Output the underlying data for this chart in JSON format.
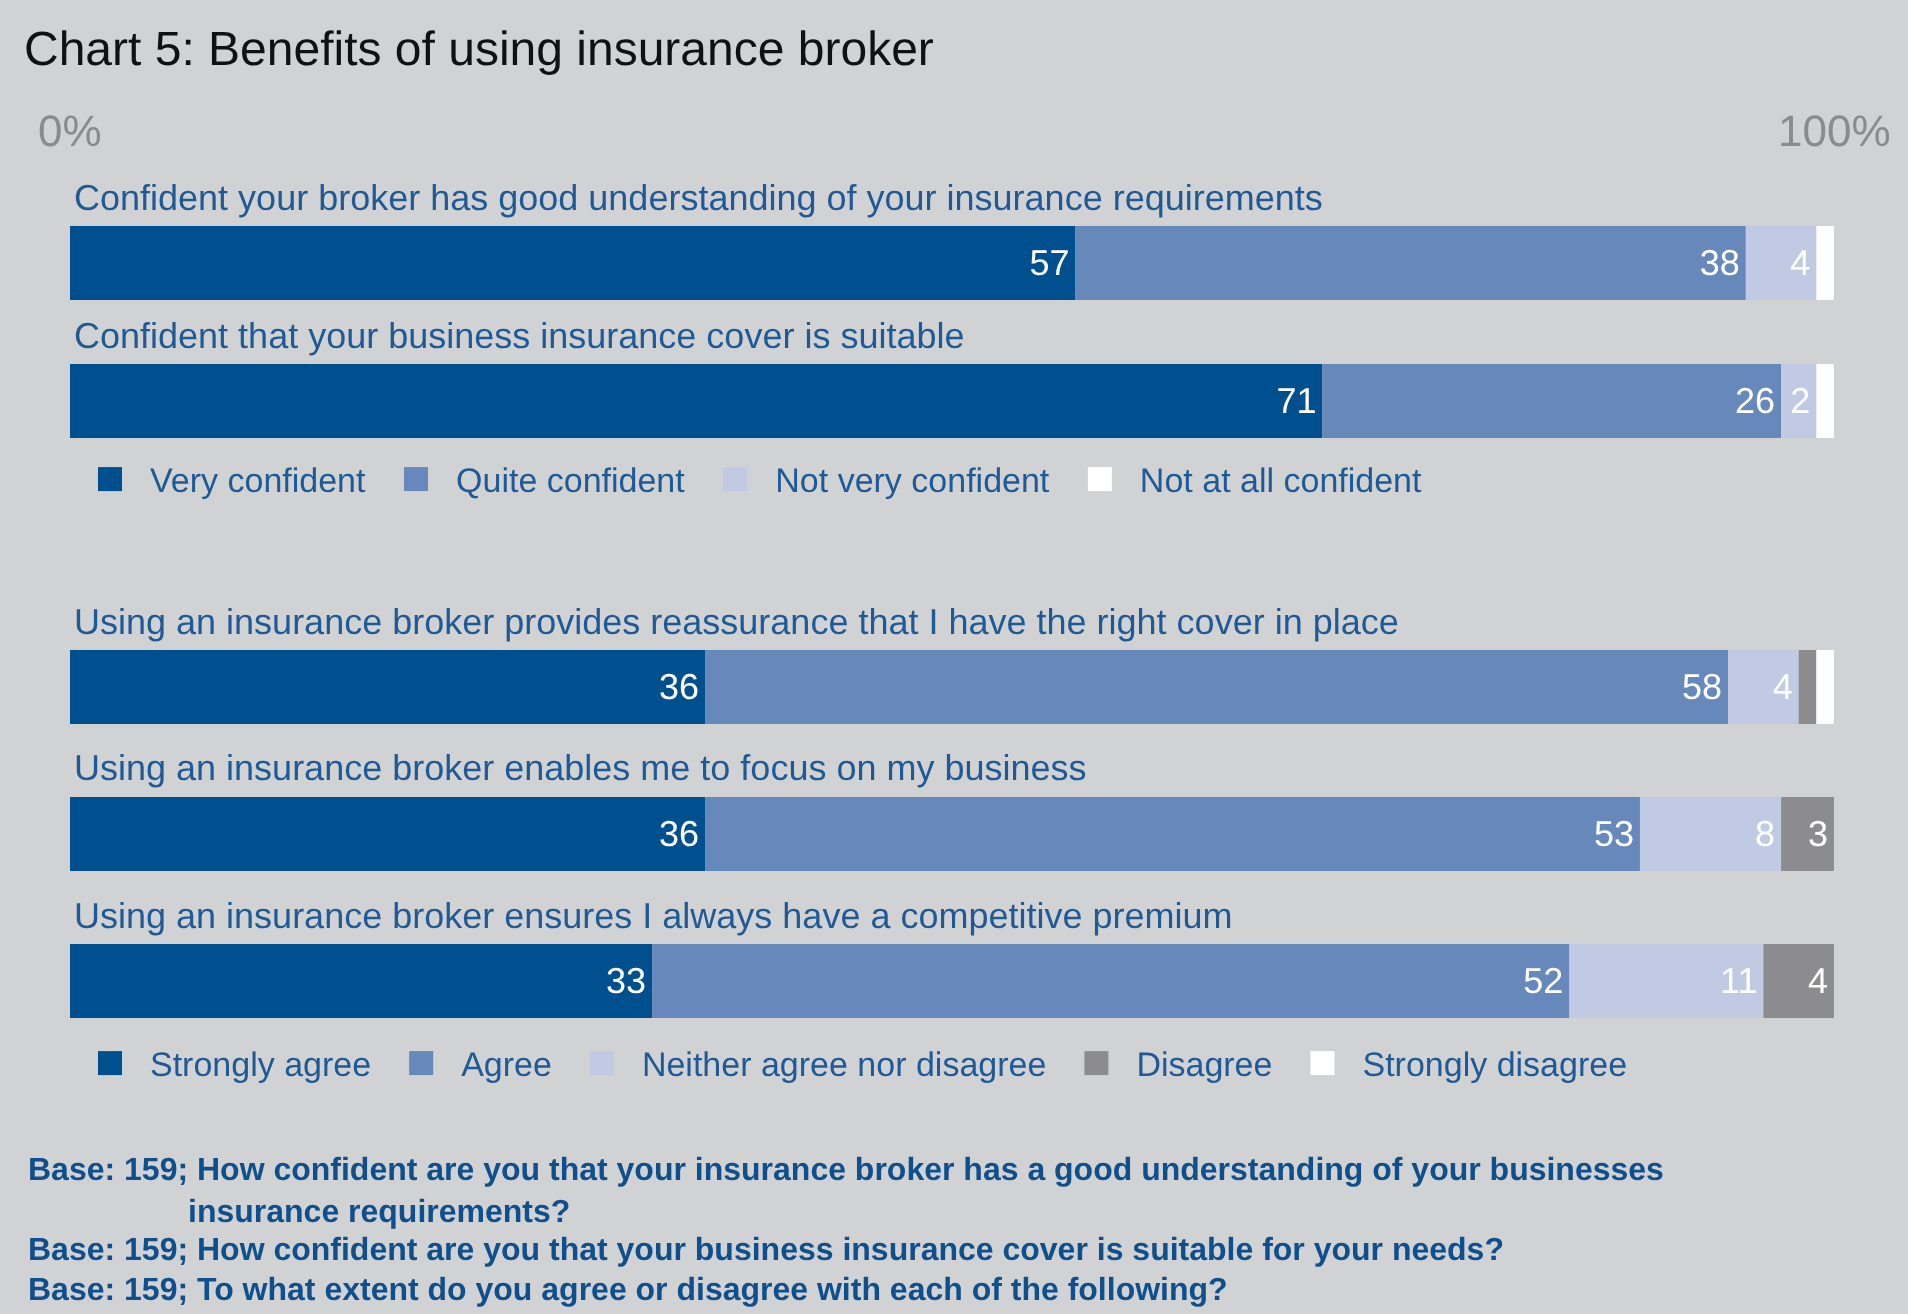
{
  "chart_data": [
    {
      "type": "bar",
      "orientation": "horizontal",
      "stacked": true,
      "title": "Chart 5: Benefits of using insurance broker",
      "categories": [
        "Confident your broker has good understanding of your insurance requirements",
        "Confident that your business insurance cover is suitable"
      ],
      "series": [
        {
          "name": "Very confident",
          "color": "#00508f",
          "values": [
            57,
            71
          ],
          "value_labels": [
            "57",
            "71"
          ]
        },
        {
          "name": "Quite confident",
          "color": "#6688bb",
          "values": [
            38,
            26
          ],
          "value_labels": [
            "38",
            "26"
          ]
        },
        {
          "name": "Not very confident",
          "color": "#c0cbe3",
          "values": [
            4,
            2
          ],
          "value_labels": [
            "4",
            "2"
          ]
        },
        {
          "name": "Not at all confident",
          "color": "#ffffff",
          "values": [
            1,
            1
          ],
          "value_labels": [
            null,
            null
          ]
        }
      ],
      "xlim": [
        0,
        100
      ],
      "xticks": [
        {
          "value": 0,
          "label": "0%"
        },
        {
          "value": 100,
          "label": "100%"
        }
      ],
      "legend": "bottom",
      "grid": false
    },
    {
      "type": "bar",
      "orientation": "horizontal",
      "stacked": true,
      "categories": [
        "Using an insurance broker provides reassurance that I have the right cover in place",
        "Using an insurance broker enables me to focus on my business",
        "Using an insurance broker ensures I always have a competitive premium"
      ],
      "series": [
        {
          "name": "Strongly agree",
          "color": "#00508f",
          "values": [
            36,
            36,
            33
          ],
          "value_labels": [
            "36",
            "36",
            "33"
          ]
        },
        {
          "name": "Agree",
          "color": "#6688bb",
          "values": [
            58,
            53,
            52
          ],
          "value_labels": [
            "58",
            "53",
            "52"
          ]
        },
        {
          "name": "Neither agree nor disagree",
          "color": "#c0cbe3",
          "values": [
            4,
            8,
            11
          ],
          "value_labels": [
            "4",
            "8",
            "11"
          ]
        },
        {
          "name": "Disagree",
          "color": "#8c8c8e",
          "values": [
            1,
            3,
            4
          ],
          "value_labels": [
            null,
            "3",
            "4"
          ]
        },
        {
          "name": "Strongly disagree",
          "color": "#ffffff",
          "values": [
            1,
            null,
            null
          ],
          "value_labels": [
            null,
            null,
            null
          ]
        }
      ],
      "xlim": [
        0,
        100
      ],
      "legend": "bottom",
      "grid": false,
      "annotations": [
        "Base: 159; How confident are you that your insurance broker has a good understanding of your businesses insurance requirements?",
        "Base: 159; How confident are you that your business insurance cover is suitable for your needs?",
        "Base: 159; To what extent do you agree or disagree with each of the following?"
      ]
    }
  ]
}
